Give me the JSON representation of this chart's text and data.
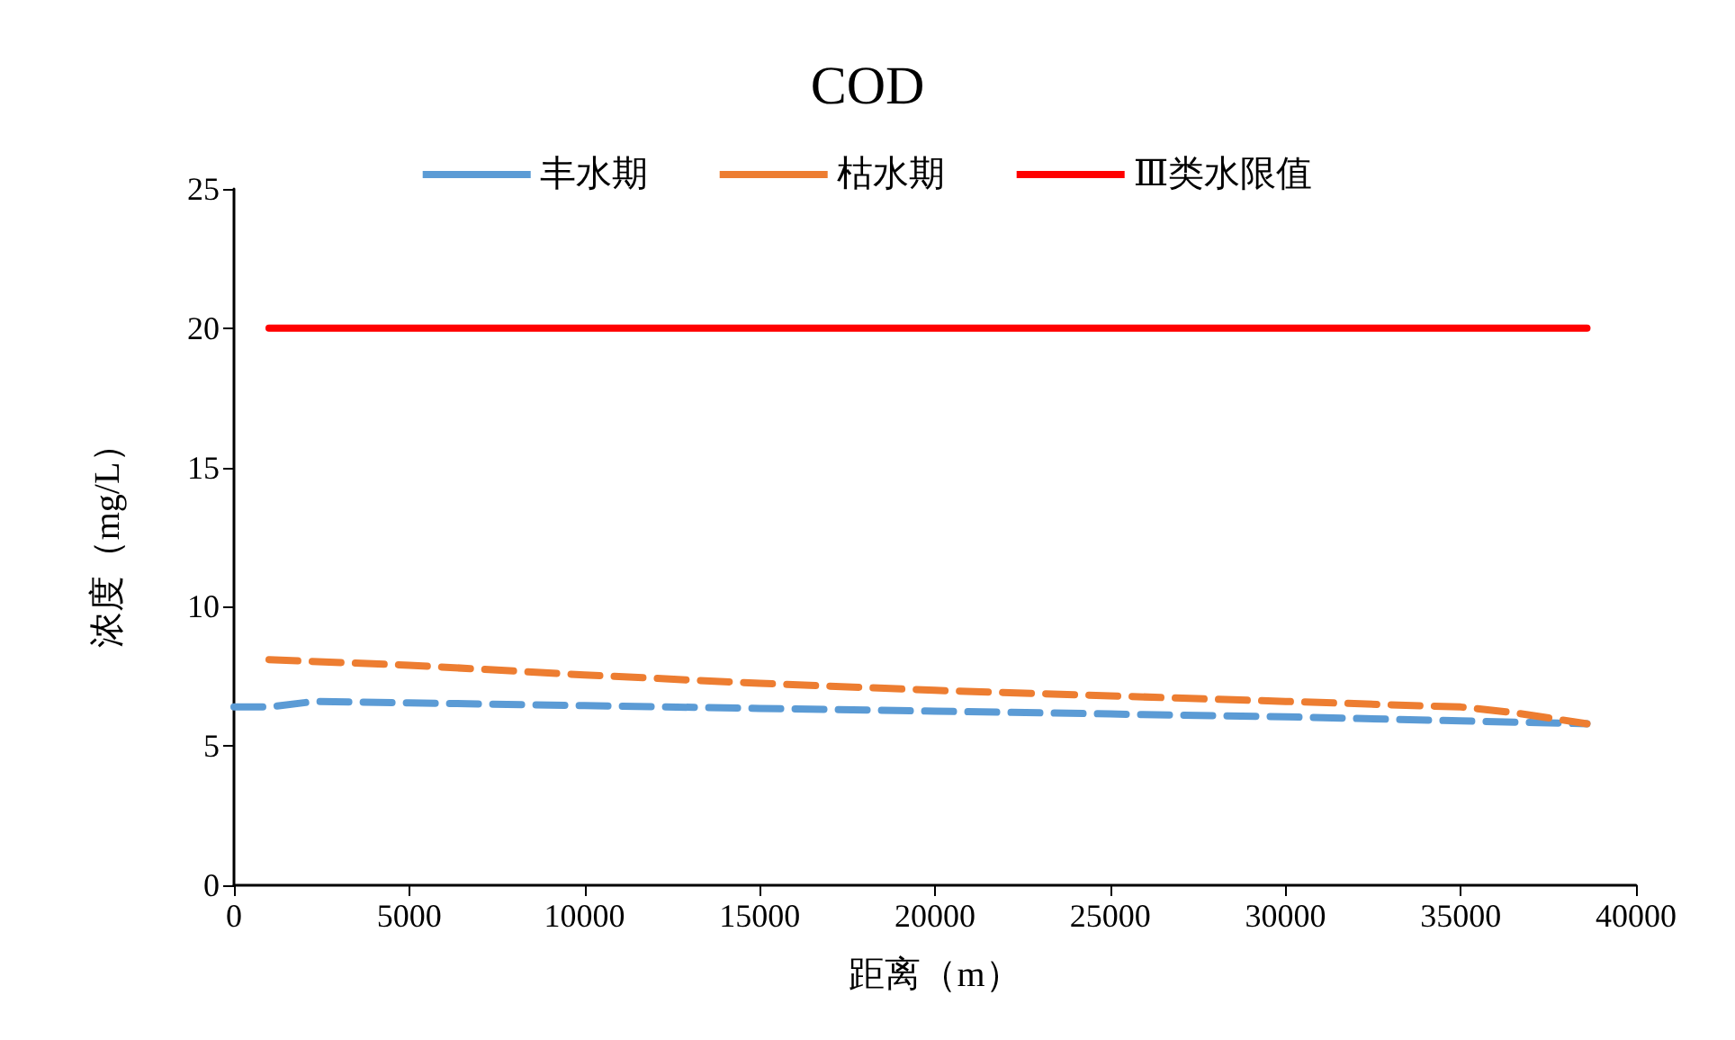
{
  "chart_data": {
    "type": "line",
    "title": "COD",
    "xlabel": "距离（m）",
    "ylabel": "浓度（mg/L）",
    "xlim": [
      0,
      40000
    ],
    "xticks": [
      0,
      5000,
      10000,
      15000,
      20000,
      25000,
      30000,
      35000,
      40000
    ],
    "ylim": [
      0,
      25
    ],
    "yticks": [
      0,
      5,
      10,
      15,
      20,
      25
    ],
    "grid": false,
    "legend": "top",
    "marker": "none",
    "series": [
      {
        "name": "丰水期",
        "color": "#5b9bd5",
        "line_style": "dashed",
        "x": [
          0,
          1000,
          2300,
          5000,
          10000,
          15000,
          20000,
          25000,
          30000,
          35000,
          38600
        ],
        "values": [
          6.4,
          6.4,
          6.6,
          6.55,
          6.45,
          6.35,
          6.25,
          6.15,
          6.05,
          5.9,
          5.8
        ]
      },
      {
        "name": "枯水期",
        "color": "#ed7d31",
        "line_style": "dashed",
        "x": [
          1000,
          5000,
          10000,
          15000,
          20000,
          25000,
          30000,
          35000,
          36500,
          38600
        ],
        "values": [
          8.1,
          7.9,
          7.55,
          7.25,
          7.0,
          6.8,
          6.6,
          6.4,
          6.2,
          5.8
        ]
      },
      {
        "name": "Ⅲ类水限值",
        "color": "#ff0000",
        "line_style": "solid",
        "x": [
          1000,
          38600
        ],
        "values": [
          20,
          20
        ]
      }
    ]
  }
}
